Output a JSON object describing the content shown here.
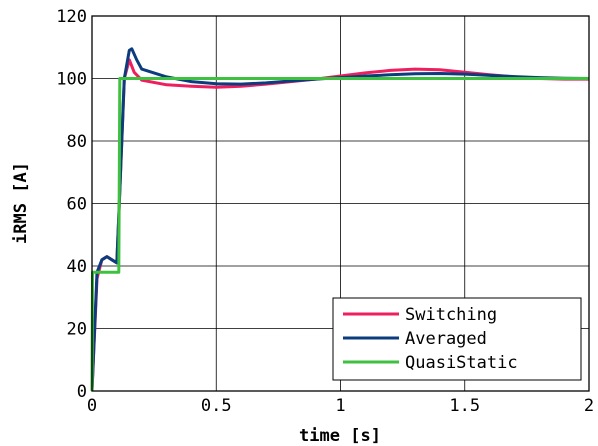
{
  "chart_data": {
    "type": "line",
    "xlabel": "time [s]",
    "ylabel": "iRMS [A]",
    "xlim": [
      0,
      2
    ],
    "ylim": [
      0,
      120
    ],
    "xticks": [
      0,
      0.5,
      1,
      1.5,
      2
    ],
    "xtick_labels": [
      "0",
      "0.5",
      "1",
      "1.5",
      "2"
    ],
    "yticks": [
      0,
      20,
      40,
      60,
      80,
      100,
      120
    ],
    "ytick_labels": [
      "0",
      "20",
      "40",
      "60",
      "80",
      "100",
      "120"
    ],
    "grid": true,
    "legend_position": "bottom-right",
    "series": [
      {
        "name": "Switching",
        "color": "#ee1f5f",
        "x": [
          0,
          0.02,
          0.04,
          0.06,
          0.08,
          0.1,
          0.11,
          0.13,
          0.15,
          0.17,
          0.2,
          0.3,
          0.4,
          0.5,
          0.6,
          0.7,
          0.8,
          0.9,
          1.0,
          1.1,
          1.2,
          1.3,
          1.4,
          1.5,
          1.6,
          1.7,
          1.8,
          1.9,
          2.0
        ],
        "y": [
          0,
          36,
          42,
          43,
          42,
          41,
          60,
          100,
          106,
          102,
          99.5,
          98,
          97.5,
          97.2,
          97.5,
          98.2,
          99,
          99.8,
          100.8,
          101.8,
          102.6,
          103,
          102.8,
          102,
          101.2,
          100.5,
          100,
          99.8,
          99.8
        ]
      },
      {
        "name": "Averaged",
        "color": "#0c3c7e",
        "x": [
          0,
          0.02,
          0.04,
          0.06,
          0.08,
          0.1,
          0.11,
          0.13,
          0.15,
          0.16,
          0.18,
          0.2,
          0.3,
          0.4,
          0.5,
          0.6,
          0.7,
          0.8,
          0.9,
          1.0,
          1.1,
          1.2,
          1.3,
          1.4,
          1.5,
          1.6,
          1.7,
          1.8,
          1.9,
          2.0
        ],
        "y": [
          0,
          38,
          42,
          43,
          42,
          41,
          60,
          100,
          109,
          109.5,
          106,
          103,
          100.5,
          99,
          98.3,
          98.2,
          98.6,
          99.2,
          99.8,
          100.3,
          100.8,
          101.2,
          101.5,
          101.6,
          101.4,
          101,
          100.6,
          100.3,
          100.1,
          100
        ]
      },
      {
        "name": "QuasiStatic",
        "color": "#3ec13f",
        "x": [
          0,
          0.002,
          0.1,
          0.108,
          0.112,
          2.0
        ],
        "y": [
          0,
          38,
          38,
          38,
          100,
          100
        ]
      }
    ]
  }
}
